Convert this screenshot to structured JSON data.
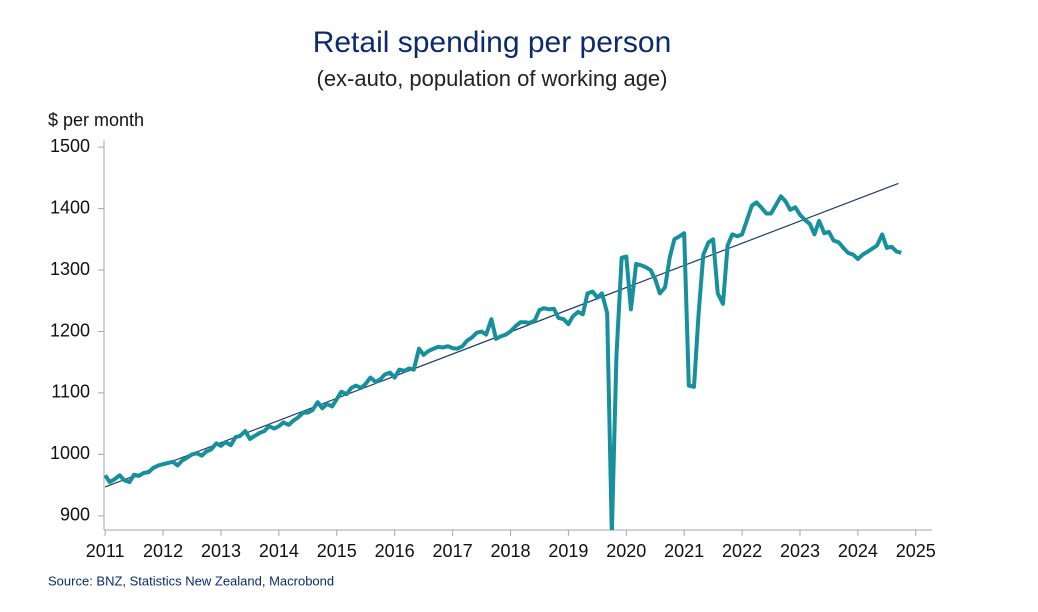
{
  "chart_data": {
    "type": "line",
    "title": "Retail spending per person",
    "subtitle": "(ex-auto, population of working age)",
    "y_label": "$ per month",
    "source": "Source: BNZ, Statistics New Zealand, Macrobond",
    "xlim": [
      2011.48,
      2025.78
    ],
    "ylim": [
      877,
      1510
    ],
    "yticks": [
      900,
      1000,
      1100,
      1200,
      1300,
      1400,
      1500
    ],
    "xticks": [
      {
        "value": 2011.5,
        "label": "2011"
      },
      {
        "value": 2012.5,
        "label": "2012"
      },
      {
        "value": 2013.5,
        "label": "2013"
      },
      {
        "value": 2014.5,
        "label": "2014"
      },
      {
        "value": 2015.5,
        "label": "2015"
      },
      {
        "value": 2016.5,
        "label": "2016"
      },
      {
        "value": 2017.5,
        "label": "2017"
      },
      {
        "value": 2018.5,
        "label": "2018"
      },
      {
        "value": 2019.5,
        "label": "2019"
      },
      {
        "value": 2020.5,
        "label": "2020"
      },
      {
        "value": 2021.5,
        "label": "2021"
      },
      {
        "value": 2022.5,
        "label": "2022"
      },
      {
        "value": 2023.5,
        "label": "2023"
      },
      {
        "value": 2024.5,
        "label": "2024"
      },
      {
        "value": 2025.5,
        "label": "2025"
      }
    ],
    "series": [
      {
        "color": "#17909b",
        "x": [
          2011.5,
          2011.58,
          2011.67,
          2011.75,
          2011.83,
          2011.92,
          2012,
          2012.08,
          2012.17,
          2012.25,
          2012.33,
          2012.42,
          2012.5,
          2012.58,
          2012.67,
          2012.75,
          2012.83,
          2012.92,
          2013,
          2013.08,
          2013.17,
          2013.25,
          2013.33,
          2013.42,
          2013.5,
          2013.58,
          2013.67,
          2013.75,
          2013.83,
          2013.92,
          2014,
          2014.08,
          2014.17,
          2014.25,
          2014.33,
          2014.42,
          2014.5,
          2014.58,
          2014.67,
          2014.75,
          2014.83,
          2014.92,
          2015,
          2015.08,
          2015.17,
          2015.25,
          2015.33,
          2015.42,
          2015.5,
          2015.58,
          2015.67,
          2015.75,
          2015.83,
          2015.92,
          2016,
          2016.08,
          2016.17,
          2016.25,
          2016.33,
          2016.42,
          2016.5,
          2016.58,
          2016.67,
          2016.75,
          2016.83,
          2016.92,
          2017,
          2017.08,
          2017.17,
          2017.25,
          2017.33,
          2017.42,
          2017.5,
          2017.58,
          2017.67,
          2017.75,
          2017.83,
          2017.92,
          2018,
          2018.08,
          2018.17,
          2018.25,
          2018.33,
          2018.42,
          2018.5,
          2018.58,
          2018.67,
          2018.75,
          2018.83,
          2018.92,
          2019,
          2019.08,
          2019.17,
          2019.25,
          2019.33,
          2019.42,
          2019.5,
          2019.58,
          2019.67,
          2019.75,
          2019.83,
          2019.92,
          2020,
          2020.08,
          2020.17,
          2020.25,
          2020.33,
          2020.42,
          2020.5,
          2020.58,
          2020.67,
          2020.75,
          2020.83,
          2020.92,
          2021,
          2021.08,
          2021.17,
          2021.25,
          2021.33,
          2021.42,
          2021.5,
          2021.58,
          2021.67,
          2021.75,
          2021.83,
          2021.92,
          2022,
          2022.08,
          2022.17,
          2022.25,
          2022.33,
          2022.42,
          2022.5,
          2022.58,
          2022.67,
          2022.75,
          2022.83,
          2022.92,
          2023,
          2023.08,
          2023.17,
          2023.25,
          2023.33,
          2023.42,
          2023.5,
          2023.58,
          2023.67,
          2023.75,
          2023.83,
          2023.92,
          2024,
          2024.08,
          2024.17,
          2024.25,
          2024.33,
          2024.42,
          2024.5,
          2024.58,
          2024.67,
          2024.75,
          2024.83,
          2024.92,
          2025,
          2025.08,
          2025.17,
          2025.25
        ],
        "values": [
          966,
          955,
          960,
          966,
          958,
          955,
          967,
          965,
          970,
          971,
          978,
          982,
          984,
          986,
          988,
          982,
          990,
          995,
          1000,
          1002,
          998,
          1005,
          1008,
          1018,
          1014,
          1020,
          1015,
          1028,
          1030,
          1038,
          1025,
          1030,
          1035,
          1038,
          1046,
          1042,
          1046,
          1052,
          1048,
          1055,
          1060,
          1068,
          1068,
          1072,
          1085,
          1075,
          1082,
          1078,
          1090,
          1102,
          1098,
          1108,
          1112,
          1108,
          1115,
          1125,
          1118,
          1122,
          1130,
          1133,
          1125,
          1138,
          1136,
          1140,
          1138,
          1172,
          1162,
          1168,
          1172,
          1175,
          1174,
          1176,
          1173,
          1172,
          1176,
          1185,
          1190,
          1198,
          1200,
          1195,
          1220,
          1188,
          1192,
          1195,
          1200,
          1208,
          1215,
          1215,
          1214,
          1218,
          1235,
          1238,
          1236,
          1237,
          1222,
          1220,
          1212,
          1225,
          1232,
          1228,
          1262,
          1265,
          1255,
          1262,
          1230,
          870,
          1160,
          1320,
          1322,
          1236,
          1310,
          1308,
          1305,
          1300,
          1285,
          1262,
          1272,
          1320,
          1350,
          1355,
          1360,
          1112,
          1110,
          1230,
          1325,
          1345,
          1350,
          1262,
          1245,
          1340,
          1358,
          1355,
          1358,
          1380,
          1405,
          1410,
          1402,
          1392,
          1392,
          1405,
          1420,
          1412,
          1398,
          1402,
          1390,
          1382,
          1375,
          1358,
          1380,
          1360,
          1362,
          1348,
          1345,
          1336,
          1328,
          1325,
          1318,
          1325,
          1330,
          1335,
          1340,
          1358,
          1336,
          1338,
          1330,
          1328
        ]
      },
      {
        "color": "#1f3864",
        "x": [
          2011.5,
          2025.2
        ],
        "values": [
          947,
          1441
        ]
      }
    ]
  }
}
